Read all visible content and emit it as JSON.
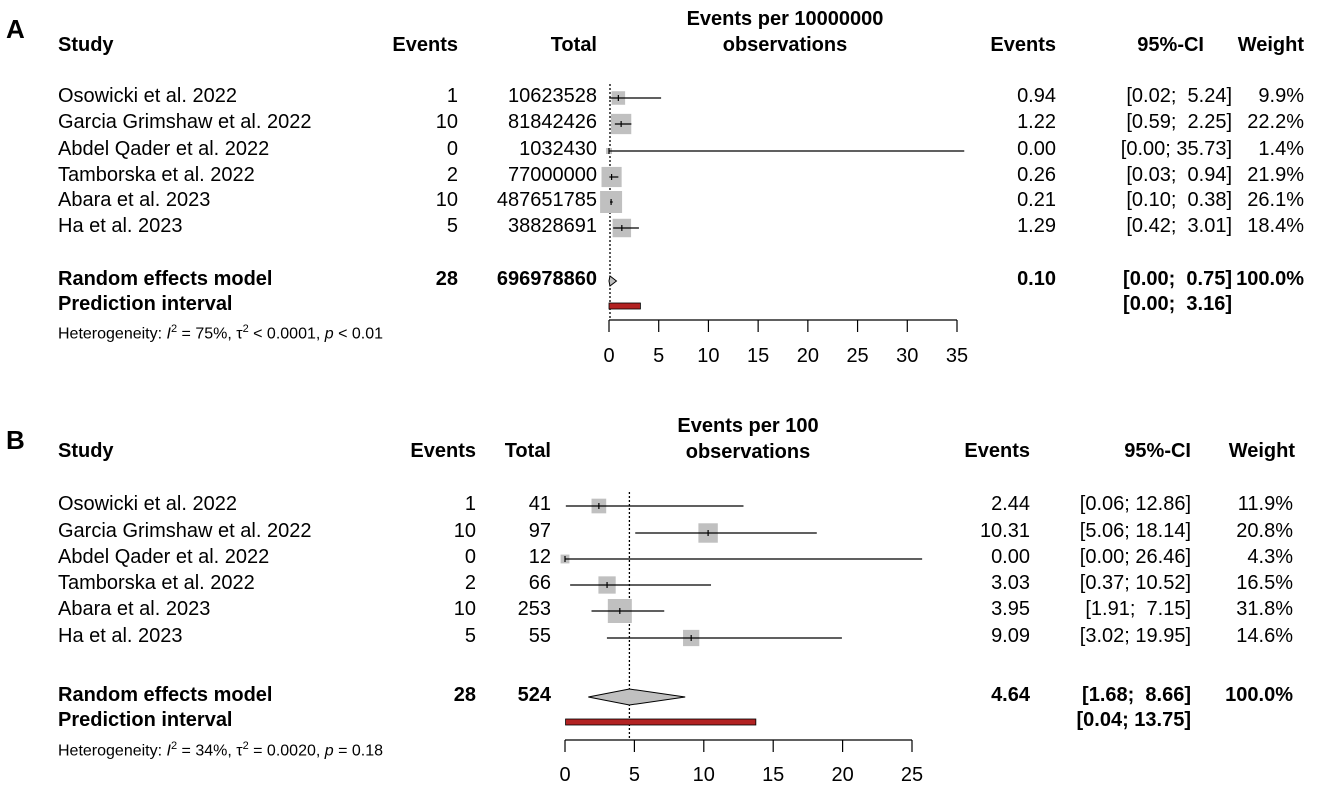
{
  "chart_data": [
    {
      "type": "forest",
      "panel_label": "A",
      "xlabel_line1": "Events per 10000000",
      "xlabel_line2": "observations",
      "headers": {
        "study": "Study",
        "events": "Events",
        "total": "Total",
        "est": "Events",
        "ci": "95%-CI",
        "weight": "Weight"
      },
      "xlim": [
        0,
        35
      ],
      "ticks": [
        0,
        5,
        10,
        15,
        20,
        25,
        30,
        35
      ],
      "tick_labels": [
        "0",
        "5",
        "10",
        "15",
        "20",
        "25",
        "30",
        "35"
      ],
      "reference_line": 0.1,
      "studies": [
        {
          "name": "Osowicki et al. 2022",
          "events": "1",
          "total": "10623528",
          "estimate": 0.94,
          "ci_low": 0.02,
          "ci_high": 5.24,
          "est_text": "0.94",
          "ci_text": "[0.02;  5.24]",
          "weight_text": "9.9%",
          "weight": 9.9
        },
        {
          "name": "Garcia Grimshaw et al. 2022",
          "events": "10",
          "total": "81842426",
          "estimate": 1.22,
          "ci_low": 0.59,
          "ci_high": 2.25,
          "est_text": "1.22",
          "ci_text": "[0.59;  2.25]",
          "weight_text": "22.2%",
          "weight": 22.2
        },
        {
          "name": "Abdel Qader et al. 2022",
          "events": "0",
          "total": "1032430",
          "estimate": 0.0,
          "ci_low": 0.0,
          "ci_high": 35.73,
          "est_text": "0.00",
          "ci_text": "[0.00; 35.73]",
          "weight_text": "1.4%",
          "weight": 1.4
        },
        {
          "name": "Tamborska et al. 2022",
          "events": "2",
          "total": "77000000",
          "estimate": 0.26,
          "ci_low": 0.03,
          "ci_high": 0.94,
          "est_text": "0.26",
          "ci_text": "[0.03;  0.94]",
          "weight_text": "21.9%",
          "weight": 21.9
        },
        {
          "name": "Abara et al. 2023",
          "events": "10",
          "total": "487651785",
          "estimate": 0.21,
          "ci_low": 0.1,
          "ci_high": 0.38,
          "est_text": "0.21",
          "ci_text": "[0.10;  0.38]",
          "weight_text": "26.1%",
          "weight": 26.1
        },
        {
          "name": "Ha et al. 2023",
          "events": "5",
          "total": "38828691",
          "estimate": 1.29,
          "ci_low": 0.42,
          "ci_high": 3.01,
          "est_text": "1.29",
          "ci_text": "[0.42;  3.01]",
          "weight_text": "18.4%",
          "weight": 18.4
        }
      ],
      "random_effects": {
        "label": "Random effects model",
        "events": "28",
        "total": "696978860",
        "estimate": 0.1,
        "ci_low": 0.0,
        "ci_high": 0.75,
        "est_text": "0.10",
        "ci_text": "[0.00;  0.75]",
        "weight_text": "100.0%"
      },
      "prediction_interval": {
        "label": "Prediction interval",
        "ci_low": 0.0,
        "ci_high": 3.16,
        "ci_text": "[0.00;  3.16]"
      },
      "heterogeneity": {
        "prefix": "Heterogeneity: ",
        "i2_symbol": "I",
        "i2_sup": "2",
        "i2_value": " = 75%, τ",
        "tau_sup": "2",
        "tau_value": " < 0.0001, ",
        "p_symbol": "p",
        "p_value": " < 0.01"
      }
    },
    {
      "type": "forest",
      "panel_label": "B",
      "xlabel_line1": "Events per 100",
      "xlabel_line2": "observations",
      "headers": {
        "study": "Study",
        "events": "Events",
        "total": "Total",
        "est": "Events",
        "ci": "95%-CI",
        "weight": "Weight"
      },
      "xlim": [
        0,
        25
      ],
      "ticks": [
        0,
        5,
        10,
        15,
        20,
        25
      ],
      "tick_labels": [
        "0",
        "5",
        "10",
        "15",
        "20",
        "25"
      ],
      "reference_line": 4.64,
      "studies": [
        {
          "name": "Osowicki et al. 2022",
          "events": "1",
          "total": "41",
          "estimate": 2.44,
          "ci_low": 0.06,
          "ci_high": 12.86,
          "est_text": "2.44",
          "ci_text": "[0.06; 12.86]",
          "weight_text": "11.9%",
          "weight": 11.9
        },
        {
          "name": "Garcia Grimshaw et al. 2022",
          "events": "10",
          "total": "97",
          "estimate": 10.31,
          "ci_low": 5.06,
          "ci_high": 18.14,
          "est_text": "10.31",
          "ci_text": "[5.06; 18.14]",
          "weight_text": "20.8%",
          "weight": 20.8
        },
        {
          "name": "Abdel Qader et al. 2022",
          "events": "0",
          "total": "12",
          "estimate": 0.0,
          "ci_low": 0.0,
          "ci_high": 26.46,
          "est_text": "0.00",
          "ci_text": "[0.00; 26.46]",
          "weight_text": "4.3%",
          "weight": 4.3
        },
        {
          "name": "Tamborska et al. 2022",
          "events": "2",
          "total": "66",
          "estimate": 3.03,
          "ci_low": 0.37,
          "ci_high": 10.52,
          "est_text": "3.03",
          "ci_text": "[0.37; 10.52]",
          "weight_text": "16.5%",
          "weight": 16.5
        },
        {
          "name": "Abara et al. 2023",
          "events": "10",
          "total": "253",
          "estimate": 3.95,
          "ci_low": 1.91,
          "ci_high": 7.15,
          "est_text": "3.95",
          "ci_text": "[1.91;  7.15]",
          "weight_text": "31.8%",
          "weight": 31.8
        },
        {
          "name": "Ha et al. 2023",
          "events": "5",
          "total": "55",
          "estimate": 9.09,
          "ci_low": 3.02,
          "ci_high": 19.95,
          "est_text": "9.09",
          "ci_text": "[3.02; 19.95]",
          "weight_text": "14.6%",
          "weight": 14.6
        }
      ],
      "random_effects": {
        "label": "Random effects model",
        "events": "28",
        "total": "524",
        "estimate": 4.64,
        "ci_low": 1.68,
        "ci_high": 8.66,
        "est_text": "4.64",
        "ci_text": "[1.68;  8.66]",
        "weight_text": "100.0%"
      },
      "prediction_interval": {
        "label": "Prediction interval",
        "ci_low": 0.04,
        "ci_high": 13.75,
        "ci_text": "[0.04; 13.75]"
      },
      "heterogeneity": {
        "prefix": "Heterogeneity: ",
        "i2_symbol": "I",
        "i2_sup": "2",
        "i2_value": " = 34%, τ",
        "tau_sup": "2",
        "tau_value": " = 0.0020, ",
        "p_symbol": "p",
        "p_value": " = 0.18"
      }
    }
  ],
  "colors": {
    "square": "#c0c0c0",
    "prediction_bar": "#b22222",
    "diamond_fill": "#c0c0c0",
    "line": "#000000"
  }
}
